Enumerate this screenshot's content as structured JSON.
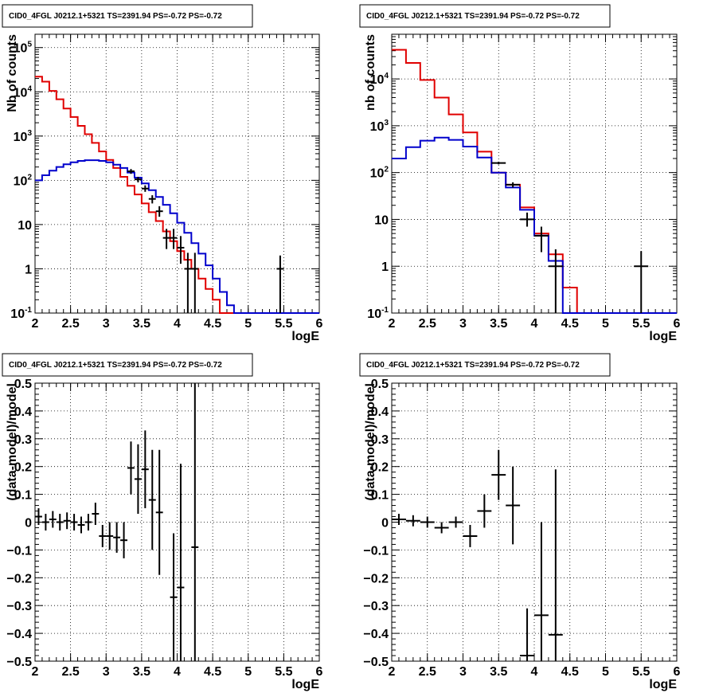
{
  "colors": {
    "data": "#000000",
    "total_model": "#e00000",
    "source_model": "#0000cc",
    "grid": "#000000"
  },
  "chart_data": [
    {
      "type": "line",
      "title": "CID0_4FGL J0212.1+5321 TS=2391.94 PS=-0.72 PS=-0.72",
      "xlabel": "logE",
      "ylabel": "Nb of counts",
      "xlim": [
        2,
        6
      ],
      "ylim": [
        0.1,
        200000
      ],
      "log_y": true,
      "grid": true,
      "x_ticks": [
        "2",
        "2.5",
        "3",
        "3.5",
        "4",
        "4.5",
        "5",
        "5.5",
        "6"
      ],
      "y_ticks": [
        {
          "v": 0.1,
          "base": "10",
          "exp": "-1"
        },
        {
          "v": 1,
          "base": "1",
          "exp": ""
        },
        {
          "v": 10,
          "base": "10",
          "exp": ""
        },
        {
          "v": 100,
          "base": "10",
          "exp": "2"
        },
        {
          "v": 1000,
          "base": "10",
          "exp": "3"
        },
        {
          "v": 10000,
          "base": "10",
          "exp": "4"
        },
        {
          "v": 100000,
          "base": "10",
          "exp": "5"
        }
      ],
      "bin_width": 0.1,
      "bin_edges_start": 2.0,
      "series": [
        {
          "style": "step",
          "color": "#e00000",
          "values": [
            22000,
            17000,
            10500,
            6800,
            4200,
            2700,
            1700,
            1100,
            700,
            450,
            290,
            190,
            120,
            75,
            48,
            30,
            19,
            12,
            7,
            4.2,
            2.5,
            1.6,
            1.0,
            0.6,
            0.35,
            0.2,
            0.1,
            0.1,
            0.1,
            0.1,
            0.1,
            0.1,
            0.1,
            0.1,
            0.1,
            0.1,
            0.1,
            0.1,
            0.1,
            0.1
          ]
        },
        {
          "style": "step",
          "color": "#0000cc",
          "values": [
            100,
            130,
            165,
            200,
            230,
            255,
            275,
            285,
            285,
            275,
            255,
            225,
            190,
            150,
            115,
            85,
            60,
            42,
            28,
            18,
            11,
            6.5,
            3.8,
            2.2,
            1.2,
            0.6,
            0.3,
            0.15,
            0.1,
            0.1,
            0.1,
            0.1,
            0.1,
            0.1,
            0.1,
            0.1,
            0.1,
            0.1,
            0.1,
            0.1
          ]
        },
        {
          "style": "points",
          "color": "#000000",
          "points": [
            {
              "x": 3.35,
              "y": 160,
              "ylo": 140,
              "yhi": 180
            },
            {
              "x": 3.45,
              "y": 105,
              "ylo": 90,
              "yhi": 120
            },
            {
              "x": 3.55,
              "y": 65,
              "ylo": 55,
              "yhi": 77
            },
            {
              "x": 3.65,
              "y": 38,
              "ylo": 30,
              "yhi": 46
            },
            {
              "x": 3.75,
              "y": 20,
              "ylo": 15,
              "yhi": 26
            },
            {
              "x": 3.85,
              "y": 5,
              "ylo": 2.8,
              "yhi": 8
            },
            {
              "x": 3.95,
              "y": 5,
              "ylo": 2.8,
              "yhi": 8
            },
            {
              "x": 4.05,
              "y": 3,
              "ylo": 1.3,
              "yhi": 5.5
            },
            {
              "x": 4.15,
              "y": 1,
              "ylo": 0.1,
              "yhi": 2.3
            },
            {
              "x": 4.25,
              "y": 1,
              "ylo": 0.1,
              "yhi": 2.3
            },
            {
              "x": 5.45,
              "y": 1,
              "ylo": 0.1,
              "yhi": 2.0
            }
          ]
        }
      ]
    },
    {
      "type": "line",
      "title": "CID0_4FGL J0212.1+5321 TS=2391.94 PS=-0.72 PS=-0.72",
      "xlabel": "logE",
      "ylabel": "nb of counts",
      "xlim": [
        2,
        6
      ],
      "ylim": [
        0.1,
        90000
      ],
      "log_y": true,
      "grid": true,
      "x_ticks": [
        "2",
        "2.5",
        "3",
        "3.5",
        "4",
        "4.5",
        "5",
        "5.5",
        "6"
      ],
      "y_ticks": [
        {
          "v": 0.1,
          "base": "10",
          "exp": "-1"
        },
        {
          "v": 1,
          "base": "1",
          "exp": ""
        },
        {
          "v": 10,
          "base": "10",
          "exp": ""
        },
        {
          "v": 100,
          "base": "10",
          "exp": "2"
        },
        {
          "v": 1000,
          "base": "10",
          "exp": "3"
        },
        {
          "v": 10000,
          "base": "10",
          "exp": "4"
        }
      ],
      "bin_width": 0.2,
      "bin_edges_start": 2.0,
      "series": [
        {
          "style": "step",
          "color": "#e00000",
          "values": [
            42000,
            22000,
            9500,
            4000,
            1750,
            720,
            280,
            100,
            55,
            18,
            5,
            1.8,
            0.35,
            0.1,
            0.1,
            0.1,
            0.1,
            0.1,
            0.1,
            0.1
          ]
        },
        {
          "style": "step",
          "color": "#0000cc",
          "values": [
            200,
            350,
            480,
            560,
            500,
            360,
            210,
            100,
            48,
            16,
            4.5,
            1.3,
            0.1,
            0.1,
            0.1,
            0.1,
            0.1,
            0.1,
            0.1,
            0.1
          ]
        },
        {
          "style": "points",
          "color": "#000000",
          "points": [
            {
              "x": 3.5,
              "y": 160,
              "ylo": 150,
              "yhi": 170
            },
            {
              "x": 3.7,
              "y": 55,
              "ylo": 48,
              "yhi": 62
            },
            {
              "x": 3.9,
              "y": 10,
              "ylo": 7,
              "yhi": 14
            },
            {
              "x": 4.1,
              "y": 4.5,
              "ylo": 2,
              "yhi": 7
            },
            {
              "x": 4.3,
              "y": 1,
              "ylo": 0.1,
              "yhi": 2.3
            },
            {
              "x": 5.5,
              "y": 1,
              "ylo": 0.1,
              "yhi": 2.1
            }
          ]
        }
      ]
    },
    {
      "type": "scatter",
      "title": "CID0_4FGL J0212.1+5321 TS=2391.94 PS=-0.72 PS=-0.72",
      "xlabel": "logE",
      "ylabel": "(data-model)/model",
      "xlim": [
        2,
        6
      ],
      "ylim": [
        -0.5,
        0.5
      ],
      "log_y": false,
      "grid": true,
      "x_ticks": [
        "2",
        "2.5",
        "3",
        "3.5",
        "4",
        "4.5",
        "5",
        "5.5",
        "6"
      ],
      "y_ticks": [
        {
          "v": -0.5,
          "label": "−0.5"
        },
        {
          "v": -0.4,
          "label": "−0.4"
        },
        {
          "v": -0.3,
          "label": "−0.3"
        },
        {
          "v": -0.2,
          "label": "−0.2"
        },
        {
          "v": -0.1,
          "label": "−0.1"
        },
        {
          "v": 0,
          "label": "0"
        },
        {
          "v": 0.1,
          "label": "0.1"
        },
        {
          "v": 0.2,
          "label": "0.2"
        },
        {
          "v": 0.3,
          "label": "0.3"
        },
        {
          "v": 0.4,
          "label": "0.4"
        },
        {
          "v": 0.5,
          "label": "0.5"
        }
      ],
      "xerr": 0.05,
      "points": [
        {
          "x": 2.05,
          "y": 0.02,
          "ylo": -0.01,
          "yhi": 0.05
        },
        {
          "x": 2.15,
          "y": 0.0,
          "ylo": -0.03,
          "yhi": 0.03
        },
        {
          "x": 2.25,
          "y": 0.01,
          "ylo": -0.02,
          "yhi": 0.04
        },
        {
          "x": 2.35,
          "y": 0.0,
          "ylo": -0.03,
          "yhi": 0.03
        },
        {
          "x": 2.45,
          "y": 0.005,
          "ylo": -0.025,
          "yhi": 0.035
        },
        {
          "x": 2.55,
          "y": 0.0,
          "ylo": -0.03,
          "yhi": 0.03
        },
        {
          "x": 2.65,
          "y": -0.01,
          "ylo": -0.04,
          "yhi": 0.02
        },
        {
          "x": 2.75,
          "y": 0.0,
          "ylo": -0.03,
          "yhi": 0.03
        },
        {
          "x": 2.85,
          "y": 0.03,
          "ylo": -0.01,
          "yhi": 0.07
        },
        {
          "x": 2.95,
          "y": -0.05,
          "ylo": -0.09,
          "yhi": -0.01
        },
        {
          "x": 3.05,
          "y": -0.05,
          "ylo": -0.1,
          "yhi": 0.0
        },
        {
          "x": 3.15,
          "y": -0.055,
          "ylo": -0.11,
          "yhi": 0.0
        },
        {
          "x": 3.25,
          "y": -0.065,
          "ylo": -0.13,
          "yhi": 0.0
        },
        {
          "x": 3.35,
          "y": 0.195,
          "ylo": 0.1,
          "yhi": 0.29
        },
        {
          "x": 3.45,
          "y": 0.155,
          "ylo": 0.03,
          "yhi": 0.28
        },
        {
          "x": 3.55,
          "y": 0.19,
          "ylo": 0.05,
          "yhi": 0.33
        },
        {
          "x": 3.65,
          "y": 0.08,
          "ylo": -0.1,
          "yhi": 0.26
        },
        {
          "x": 3.75,
          "y": 0.035,
          "ylo": -0.19,
          "yhi": 0.26
        },
        {
          "x": 3.95,
          "y": -0.27,
          "ylo": -0.5,
          "yhi": -0.04
        },
        {
          "x": 4.05,
          "y": -0.235,
          "ylo": -0.5,
          "yhi": 0.21
        },
        {
          "x": 4.25,
          "y": -0.09,
          "ylo": -0.5,
          "yhi": 0.5
        }
      ]
    },
    {
      "type": "scatter",
      "title": "CID0_4FGL J0212.1+5321 TS=2391.94 PS=-0.72 PS=-0.72",
      "xlabel": "logE",
      "ylabel": "(data-model)/model",
      "xlim": [
        2,
        6
      ],
      "ylim": [
        -0.5,
        0.5
      ],
      "log_y": false,
      "grid": true,
      "x_ticks": [
        "2",
        "2.5",
        "3",
        "3.5",
        "4",
        "4.5",
        "5",
        "5.5",
        "6"
      ],
      "y_ticks": [
        {
          "v": -0.5,
          "label": "−0.5"
        },
        {
          "v": -0.4,
          "label": "−0.4"
        },
        {
          "v": -0.3,
          "label": "−0.3"
        },
        {
          "v": -0.2,
          "label": "−0.2"
        },
        {
          "v": -0.1,
          "label": "−0.1"
        },
        {
          "v": 0,
          "label": "0"
        },
        {
          "v": 0.1,
          "label": "0.1"
        },
        {
          "v": 0.2,
          "label": "0.2"
        },
        {
          "v": 0.3,
          "label": "0.3"
        },
        {
          "v": 0.4,
          "label": "0.4"
        },
        {
          "v": 0.5,
          "label": "0.5"
        }
      ],
      "xerr": 0.1,
      "points": [
        {
          "x": 2.1,
          "y": 0.01,
          "ylo": -0.01,
          "yhi": 0.03
        },
        {
          "x": 2.3,
          "y": 0.005,
          "ylo": -0.015,
          "yhi": 0.025
        },
        {
          "x": 2.5,
          "y": 0.0,
          "ylo": -0.02,
          "yhi": 0.02
        },
        {
          "x": 2.7,
          "y": -0.02,
          "ylo": -0.04,
          "yhi": 0.0
        },
        {
          "x": 2.9,
          "y": 0.0,
          "ylo": -0.02,
          "yhi": 0.02
        },
        {
          "x": 3.1,
          "y": -0.05,
          "ylo": -0.09,
          "yhi": -0.01
        },
        {
          "x": 3.3,
          "y": 0.04,
          "ylo": -0.02,
          "yhi": 0.1
        },
        {
          "x": 3.5,
          "y": 0.17,
          "ylo": 0.08,
          "yhi": 0.26
        },
        {
          "x": 3.7,
          "y": 0.06,
          "ylo": -0.08,
          "yhi": 0.2
        },
        {
          "x": 3.9,
          "y": -0.48,
          "ylo": -0.5,
          "yhi": -0.31
        },
        {
          "x": 4.1,
          "y": -0.335,
          "ylo": -0.5,
          "yhi": 0.0
        },
        {
          "x": 4.3,
          "y": -0.405,
          "ylo": -0.5,
          "yhi": 0.19
        }
      ]
    }
  ]
}
